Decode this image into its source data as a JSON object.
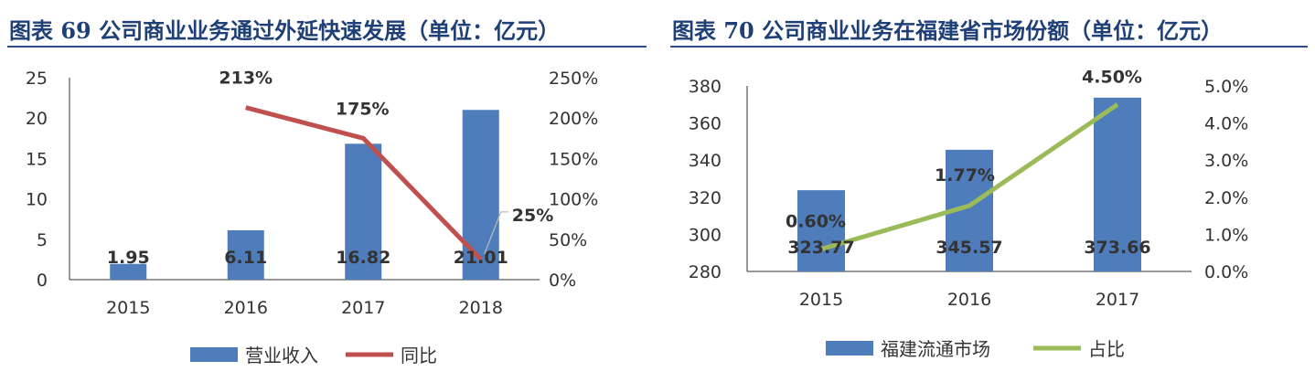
{
  "colors": {
    "bar": "#4f7cba",
    "line_left": "#c0504d",
    "line_right": "#9bbb59",
    "title": "#1f3f77"
  },
  "chart_data": [
    {
      "type": "bar",
      "title": "图表 69 公司商业业务通过外延快速发展（单位：亿元）",
      "categories": [
        "2015",
        "2016",
        "2017",
        "2018"
      ],
      "series": [
        {
          "name": "营业收入",
          "type": "bar",
          "axis": "left",
          "values": [
            1.95,
            6.11,
            16.82,
            21.01
          ]
        },
        {
          "name": "同比",
          "type": "line",
          "axis": "right",
          "values": [
            null,
            2.13,
            1.75,
            0.25
          ]
        }
      ],
      "bar_labels": [
        "1.95",
        "6.11",
        "16.82",
        "21.01"
      ],
      "line_labels": [
        "",
        "213%",
        "175%",
        "25%"
      ],
      "y_left": {
        "ylim": [
          0,
          25
        ],
        "ticks": [
          "0",
          "5",
          "10",
          "15",
          "20",
          "25"
        ]
      },
      "y_right": {
        "ylim": [
          0,
          2.5
        ],
        "ticks": [
          "0%",
          "50%",
          "100%",
          "150%",
          "200%",
          "250%"
        ]
      },
      "grid": false,
      "legend": "bottom"
    },
    {
      "type": "bar",
      "title": "图表 70 公司商业业务在福建省市场份额（单位：亿元）",
      "categories": [
        "2015",
        "2016",
        "2017"
      ],
      "series": [
        {
          "name": "福建流通市场",
          "type": "bar",
          "axis": "left",
          "values": [
            323.77,
            345.57,
            373.66
          ]
        },
        {
          "name": "占比",
          "type": "line",
          "axis": "right",
          "values": [
            0.006,
            0.0177,
            0.045
          ]
        }
      ],
      "bar_labels": [
        "323.77",
        "345.57",
        "373.66"
      ],
      "line_labels": [
        "0.60%",
        "1.77%",
        "4.50%"
      ],
      "y_left": {
        "ylim": [
          280,
          380
        ],
        "ticks": [
          "280",
          "300",
          "320",
          "340",
          "360",
          "380"
        ]
      },
      "y_right": {
        "ylim": [
          0,
          0.05
        ],
        "ticks": [
          "0.0%",
          "1.0%",
          "2.0%",
          "3.0%",
          "4.0%",
          "5.0%"
        ]
      },
      "grid": false,
      "legend": "bottom"
    }
  ]
}
